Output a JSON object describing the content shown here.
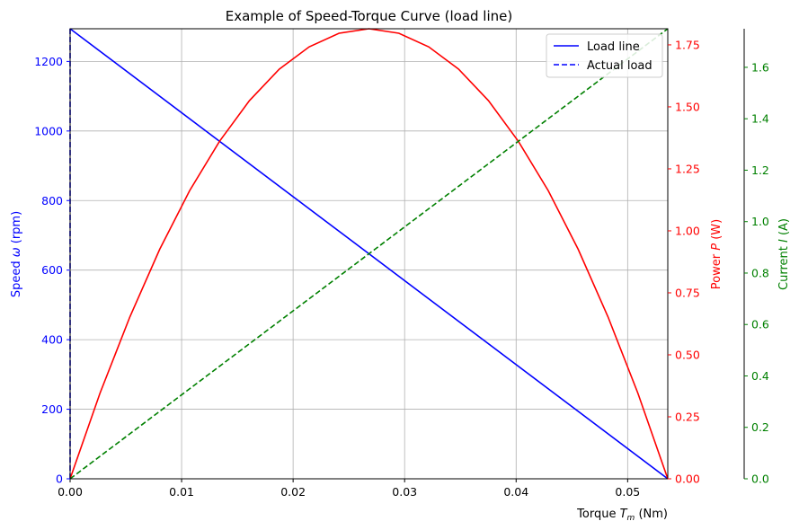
{
  "chart_data": {
    "type": "line",
    "title": "Example of Speed-Torque Curve (load line)",
    "xlabel": "Torque T_m (Nm)",
    "xlabel_parts": {
      "pre": "Torque ",
      "sym": "T",
      "sub": "m",
      "post": " (Nm)"
    },
    "y_speed_label_parts": {
      "pre": "Speed ",
      "sym": "ω",
      "post": " (rpm)"
    },
    "y_power_label_parts": {
      "pre": "Power ",
      "sym": "P",
      "post": " (W)"
    },
    "y_current_label_parts": {
      "pre": "Current ",
      "sym": "I",
      "post": " (A)"
    },
    "xlim": [
      0,
      0.0536
    ],
    "x_ticks": [
      0,
      0.01,
      0.02,
      0.03,
      0.04,
      0.05
    ],
    "x_tick_labels": [
      "0.00",
      "0.01",
      "0.02",
      "0.03",
      "0.04",
      "0.05"
    ],
    "grid": true,
    "legend_position": "top-right",
    "axes": {
      "speed": {
        "label": "Speed ω (rpm)",
        "color": "#0000ff",
        "ylim": [
          0,
          1294
        ],
        "ticks": [
          0,
          200,
          400,
          600,
          800,
          1000,
          1200
        ],
        "tick_labels": [
          "0",
          "200",
          "400",
          "600",
          "800",
          "1000",
          "1200"
        ]
      },
      "power": {
        "label": "Power P (W)",
        "color": "#ff0000",
        "ylim": [
          0,
          1.815
        ],
        "ticks": [
          0,
          0.25,
          0.5,
          0.75,
          1.0,
          1.25,
          1.5,
          1.75
        ],
        "tick_labels": [
          "0.00",
          "0.25",
          "0.50",
          "0.75",
          "1.00",
          "1.25",
          "1.50",
          "1.75"
        ]
      },
      "current": {
        "label": "Current I (A)",
        "color": "#008000",
        "ylim": [
          0,
          1.75
        ],
        "ticks": [
          0,
          0.2,
          0.4,
          0.6,
          0.8,
          1.0,
          1.2,
          1.4,
          1.6
        ],
        "tick_labels": [
          "0.0",
          "0.2",
          "0.4",
          "0.6",
          "0.8",
          "1.0",
          "1.2",
          "1.4",
          "1.6"
        ]
      }
    },
    "series": [
      {
        "name": "Load line",
        "axis": "speed",
        "color": "#0000ff",
        "style": "solid",
        "x": [
          0,
          0.0536
        ],
        "y": [
          1294,
          0
        ]
      },
      {
        "name": "Actual load",
        "axis": "speed",
        "color": "#0000ff",
        "style": "dashed",
        "x": [
          0,
          0
        ],
        "y": [
          0,
          1294
        ]
      },
      {
        "axis": "power",
        "color": "#ff0000",
        "style": "solid",
        "x": [
          0,
          0.00268,
          0.00536,
          0.00804,
          0.01072,
          0.0134,
          0.01608,
          0.01876,
          0.02144,
          0.02412,
          0.0268,
          0.02948,
          0.03216,
          0.03484,
          0.03752,
          0.0402,
          0.04288,
          0.04556,
          0.04824,
          0.05092,
          0.0536
        ],
        "y": [
          0,
          0.345,
          0.653,
          0.926,
          1.162,
          1.361,
          1.525,
          1.652,
          1.742,
          1.797,
          1.815,
          1.797,
          1.742,
          1.652,
          1.525,
          1.361,
          1.162,
          0.926,
          0.653,
          0.345,
          0
        ]
      },
      {
        "axis": "current",
        "color": "#008000",
        "style": "dashed",
        "x": [
          0,
          0.0536
        ],
        "y": [
          0,
          1.75
        ]
      }
    ]
  }
}
